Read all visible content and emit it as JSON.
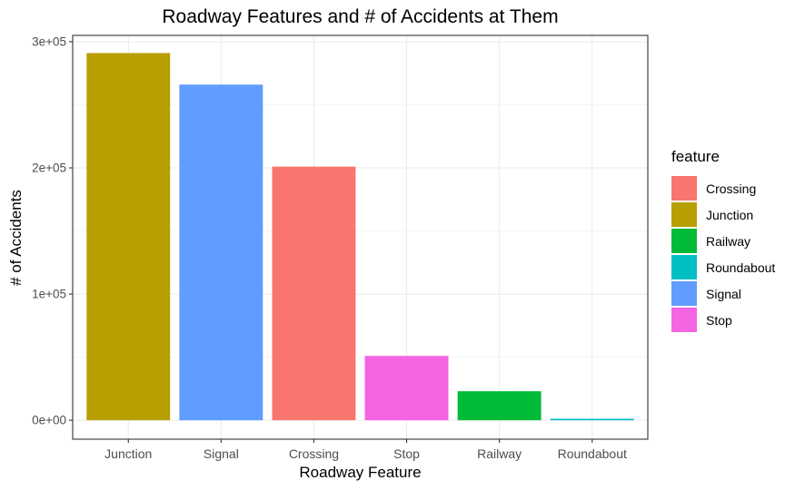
{
  "chart_data": {
    "type": "bar",
    "title": "Roadway Features and # of Accidents at Them",
    "xlabel": "Roadway Feature",
    "ylabel": "# of Accidents",
    "categories": [
      "Junction",
      "Signal",
      "Crossing",
      "Stop",
      "Railway",
      "Roundabout"
    ],
    "values": [
      291000,
      266000,
      201000,
      51000,
      23000,
      1200
    ],
    "colors": [
      "#B79F00",
      "#619CFF",
      "#F8766D",
      "#F564E3",
      "#00BA38",
      "#00BFC4"
    ],
    "ylim": [
      -15000,
      305000
    ],
    "yticks": [
      0,
      100000,
      200000,
      300000
    ],
    "ytick_labels": [
      "0e+00",
      "1e+05",
      "2e+05",
      "3e+05"
    ],
    "grid": true,
    "legend": {
      "title": "feature",
      "position": "right",
      "entries": [
        {
          "label": "Crossing",
          "color": "#F8766D"
        },
        {
          "label": "Junction",
          "color": "#B79F00"
        },
        {
          "label": "Railway",
          "color": "#00BA38"
        },
        {
          "label": "Roundabout",
          "color": "#00BFC4"
        },
        {
          "label": "Signal",
          "color": "#619CFF"
        },
        {
          "label": "Stop",
          "color": "#F564E3"
        }
      ]
    }
  }
}
